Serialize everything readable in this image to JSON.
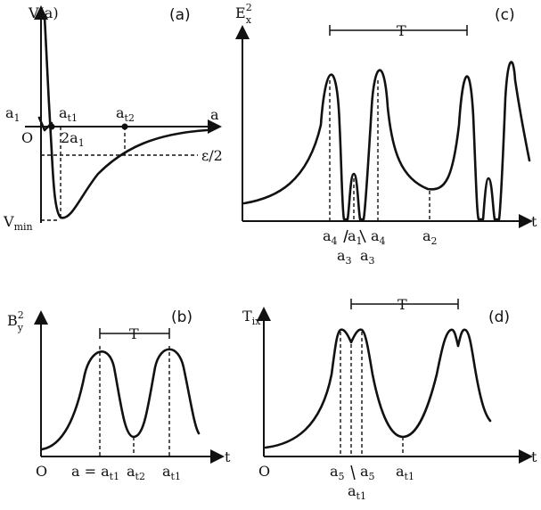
{
  "panel_a": {
    "tag": "(a)",
    "y_axis_label": "V(a)",
    "x_axis_label": "a",
    "origin": "O",
    "pt_a1": "a",
    "pt_a1_sub": "1",
    "pt_at1": "a",
    "pt_at1_sub": "t1",
    "pt_at2": "a",
    "pt_at2_sub": "t2",
    "pt_2a1": "2a",
    "pt_2a1_sub": "1",
    "level_eps": "ε/2",
    "vmin": "V",
    "vmin_sub": "min"
  },
  "panel_b": {
    "tag": "(b)",
    "y_axis_label": "B",
    "y_sup": "2",
    "y_sub": "y",
    "t_axis": "t",
    "origin": "O",
    "period": "T",
    "tick_1": "a = a",
    "tick_1_sub": "t1",
    "tick_2": "a",
    "tick_2_sub": "t2",
    "tick_3": "a",
    "tick_3_sub": "t1"
  },
  "panel_c": {
    "tag": "(c)",
    "y_axis_label": "E",
    "y_sup": "2",
    "y_sub": "x",
    "t_axis": "t",
    "period": "T",
    "tick_a4_l": "a",
    "tick_a4_l_sub": "4",
    "tick_a1": "a",
    "tick_a1_sub": "1",
    "tick_a4_r": "a",
    "tick_a4_r_sub": "4",
    "tick_a2": "a",
    "tick_a2_sub": "2",
    "tick_a3_l": "a",
    "tick_a3_l_sub": "3",
    "tick_a3_r": "a",
    "tick_a3_r_sub": "3"
  },
  "panel_d": {
    "tag": "(d)",
    "y_axis_label": "T",
    "y_sub": "ix",
    "t_axis": "t",
    "origin": "O",
    "period": "T",
    "tick_a5_l": "a",
    "tick_a5_l_sub": "5",
    "tick_a5_r": "a",
    "tick_a5_r_sub": "5",
    "tick_at1_mid": "a",
    "tick_at1_mid_sub": "t1",
    "tick_at1": "a",
    "tick_at1_sub": "t1"
  }
}
